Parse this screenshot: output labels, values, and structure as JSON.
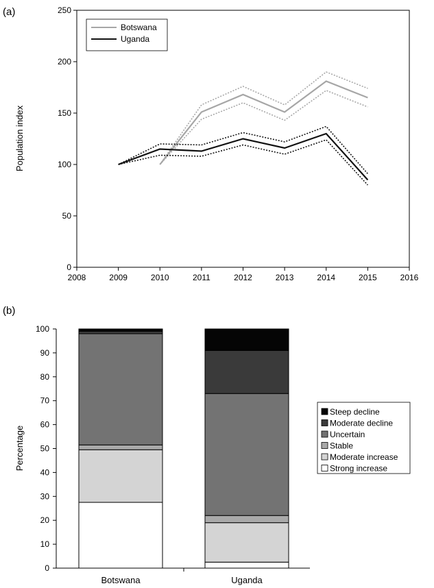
{
  "chart_data": [
    {
      "panel_label": "(a)",
      "type": "line",
      "xlabel": "",
      "ylabel": "Population index",
      "xlim": [
        2008,
        2016
      ],
      "ylim": [
        0,
        250
      ],
      "xticks": [
        "2008",
        "2009",
        "2010",
        "2011",
        "2012",
        "2013",
        "2014",
        "2015",
        "2016"
      ],
      "yticks": [
        "0",
        "50",
        "100",
        "150",
        "200",
        "250"
      ],
      "legend_position": "top-left",
      "grid": false,
      "series": [
        {
          "name": "Botswana",
          "color": "#a6a6a6",
          "x": [
            2010,
            2011,
            2012,
            2013,
            2014,
            2015
          ],
          "values": [
            100,
            151,
            168,
            151,
            181,
            165
          ],
          "upper": [
            100,
            158,
            176,
            158,
            190,
            174
          ],
          "lower": [
            100,
            144,
            160,
            143,
            172,
            156
          ]
        },
        {
          "name": "Uganda",
          "color": "#111111",
          "x": [
            2009,
            2010,
            2011,
            2012,
            2013,
            2014,
            2015
          ],
          "values": [
            100,
            115,
            113,
            125,
            116,
            130,
            85
          ],
          "upper": [
            100,
            120,
            119,
            131,
            122,
            137,
            91
          ],
          "lower": [
            100,
            109,
            108,
            119,
            110,
            124,
            80
          ]
        }
      ]
    },
    {
      "panel_label": "(b)",
      "type": "bar",
      "stacked": true,
      "xlabel": "",
      "ylabel": "Percentage",
      "ylim": [
        0,
        100
      ],
      "yticks": [
        "0",
        "10",
        "20",
        "30",
        "40",
        "50",
        "60",
        "70",
        "80",
        "90",
        "100"
      ],
      "categories": [
        "Botswana",
        "Uganda"
      ],
      "legend_position": "right",
      "grid": false,
      "series": [
        {
          "name": "Strong increase",
          "color": "#ffffff",
          "values": [
            27.5,
            2.5
          ]
        },
        {
          "name": "Moderate increase",
          "color": "#d4d4d4",
          "values": [
            22,
            16.5
          ]
        },
        {
          "name": "Stable",
          "color": "#a9a9a9",
          "values": [
            2,
            3
          ]
        },
        {
          "name": "Uncertain",
          "color": "#737373",
          "values": [
            46.5,
            51
          ]
        },
        {
          "name": "Moderate decline",
          "color": "#3a3a3a",
          "values": [
            1,
            18
          ]
        },
        {
          "name": "Steep decline",
          "color": "#050505",
          "values": [
            1,
            9
          ]
        }
      ]
    }
  ]
}
